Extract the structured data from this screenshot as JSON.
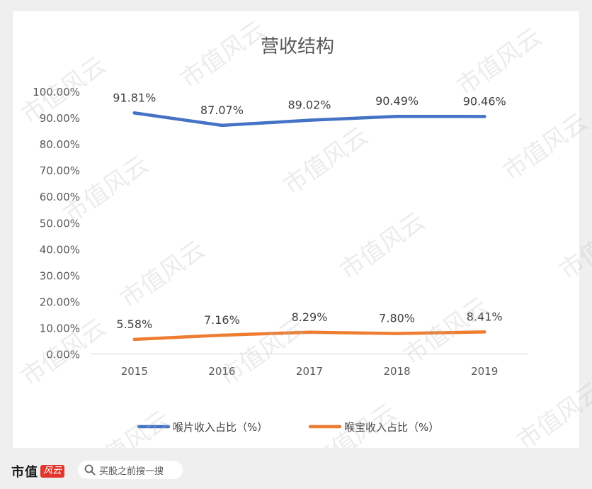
{
  "chart_data": {
    "type": "line",
    "title": "营收结构",
    "categories": [
      "2015",
      "2016",
      "2017",
      "2018",
      "2019"
    ],
    "ylim": [
      0,
      100
    ],
    "yticks": [
      "0.00%",
      "10.00%",
      "20.00%",
      "30.00%",
      "40.00%",
      "50.00%",
      "60.00%",
      "70.00%",
      "80.00%",
      "90.00%",
      "100.00%"
    ],
    "grid": false,
    "legend_position": "bottom",
    "series": [
      {
        "name": "喉片收入占比（%）",
        "values": [
          91.81,
          87.07,
          89.02,
          90.49,
          90.46
        ],
        "labels": [
          "91.81%",
          "87.07%",
          "89.02%",
          "90.49%",
          "90.46%"
        ],
        "color": "#4472c4"
      },
      {
        "name": "喉宝收入占比（%）",
        "values": [
          5.58,
          7.16,
          8.29,
          7.8,
          8.41
        ],
        "labels": [
          "5.58%",
          "7.16%",
          "8.29%",
          "7.80%",
          "8.41%"
        ],
        "color": "#ed7d31"
      }
    ]
  },
  "watermark_text": "市值风云",
  "footer": {
    "brand": "市值",
    "brand_badge": "风云",
    "search_icon": "search-icon",
    "search_text": "买股之前搜一搜"
  }
}
